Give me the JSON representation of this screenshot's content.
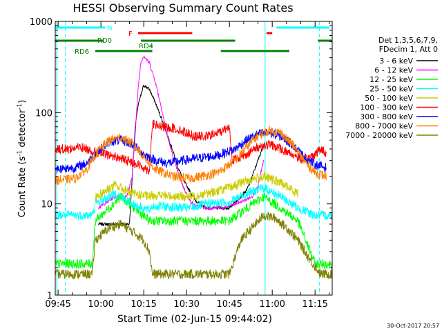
{
  "chart_data": {
    "type": "line",
    "title": "HESSI Observing Summary Count Rates",
    "xlabel": "Start Time (02-Jun-15 09:44:02)",
    "ylabel_main": "Count Rate (s",
    "ylabel_sup1": "-1",
    "ylabel_mid": " detector",
    "ylabel_sup2": "-1",
    "ylabel_end": ")",
    "y_scale": "log",
    "ylim": [
      1,
      1000
    ],
    "xlim_minutes": [
      -1,
      96
    ],
    "x_ticks": [
      {
        "label": "09:45",
        "m": 0
      },
      {
        "label": "10:00",
        "m": 15
      },
      {
        "label": "10:15",
        "m": 30
      },
      {
        "label": "10:30",
        "m": 45
      },
      {
        "label": "10:45",
        "m": 60
      },
      {
        "label": "11:00",
        "m": 75
      },
      {
        "label": "11:15",
        "m": 90
      }
    ],
    "y_ticks": [
      {
        "label": "1",
        "v": 1
      },
      {
        "label": "10",
        "v": 10
      },
      {
        "label": "100",
        "v": 100
      },
      {
        "label": "1000",
        "v": 1000
      }
    ],
    "legend_title_1": "Det 1,3,5,6,7,9,",
    "legend_title_2": "FDecim 1, Att 0",
    "legend_placement": "right",
    "timestamp": "30-Oct-2017 20:57",
    "saa_lines_minutes": [
      -0.5,
      72.5
    ],
    "night_lines_minutes": [
      2.5,
      91.5
    ],
    "flags": [
      {
        "label": "N",
        "color": "#00ffff",
        "segments": [
          [
            -1,
            16.5
          ],
          [
            76.5,
            95
          ]
        ]
      },
      {
        "label": "F",
        "color": "#ff0000",
        "segments": [
          [
            28,
            47
          ],
          [
            73,
            75
          ]
        ]
      },
      {
        "label": "RD0",
        "color": "#008000",
        "segments": [
          [
            -1,
            16
          ],
          [
            29,
            62
          ],
          [
            91,
            96
          ]
        ]
      },
      {
        "label": "RD4",
        "color": "#008000",
        "segments": [
          [
            32.5,
            33
          ]
        ]
      },
      {
        "label": "RD6",
        "color": "#008000",
        "segments": [
          [
            13,
            33
          ],
          [
            57,
            81
          ]
        ]
      }
    ],
    "series": [
      {
        "name": "3 - 6 keV",
        "color": "#000000",
        "x": [
          -1,
          12,
          14,
          25,
          26,
          27,
          28,
          30,
          32,
          34,
          36,
          38,
          40,
          42,
          44,
          46,
          48,
          52,
          60,
          66,
          68,
          70,
          72
        ],
        "y": [
          null,
          null,
          6,
          6,
          20,
          70,
          120,
          200,
          180,
          130,
          90,
          60,
          40,
          25,
          18,
          14,
          11,
          9,
          9,
          14,
          20,
          30,
          45
        ]
      },
      {
        "name": "6 - 12 keV",
        "color": "#ff00ff",
        "x": [
          -1,
          12,
          14,
          20,
          24,
          26,
          27,
          28,
          29,
          30,
          32,
          34,
          36,
          38,
          40,
          42,
          44,
          46,
          48,
          52,
          58,
          64,
          68,
          70,
          72
        ],
        "y": [
          null,
          null,
          9,
          12,
          12,
          20,
          60,
          180,
          360,
          420,
          350,
          220,
          120,
          60,
          35,
          22,
          15,
          11,
          9.5,
          9,
          9,
          10.5,
          12,
          16,
          30
        ]
      },
      {
        "name": "12 - 25 keV",
        "color": "#00ff00",
        "x": [
          -1,
          12,
          13,
          22,
          32,
          33,
          50,
          60,
          66,
          72,
          78,
          84,
          90,
          96
        ],
        "y": [
          2.2,
          2.2,
          6.5,
          12,
          6.5,
          6.5,
          6.5,
          6.5,
          9,
          12,
          9,
          6.5,
          2.2,
          2.2
        ]
      },
      {
        "name": "25 - 50 keV",
        "color": "#00ffff",
        "x": [
          -1,
          12,
          13,
          20,
          26,
          32,
          33,
          46,
          52,
          60,
          66,
          72,
          78,
          84,
          90,
          96
        ],
        "y": [
          7.5,
          7.5,
          10,
          13,
          10,
          8.5,
          9.5,
          9,
          10,
          10.5,
          13,
          15,
          12,
          9,
          7.5,
          7.5
        ]
      },
      {
        "name": "50 - 100 keV",
        "color": "#cccc00",
        "x": [
          -1,
          12,
          13,
          20,
          26,
          32,
          33,
          46,
          52,
          60,
          66,
          72,
          78,
          84,
          90,
          96
        ],
        "y": [
          null,
          null,
          12,
          16,
          13,
          12,
          12.5,
          12,
          13,
          15,
          18,
          20,
          17,
          13,
          null,
          null
        ]
      },
      {
        "name": "100 - 300 keV",
        "color": "#ff0000",
        "x": [
          -1,
          4,
          8,
          12,
          16,
          20,
          24,
          28,
          30,
          32,
          33,
          36,
          40,
          44,
          48,
          52,
          56,
          60,
          61,
          66,
          70,
          74,
          78,
          82,
          86,
          90,
          92,
          94
        ],
        "y": [
          40,
          40,
          42,
          38,
          35,
          33,
          30,
          27,
          25,
          23,
          75,
          70,
          68,
          62,
          55,
          55,
          60,
          70,
          30,
          35,
          42,
          45,
          40,
          35,
          30,
          35,
          40,
          36
        ]
      },
      {
        "name": "300 - 800 keV",
        "color": "#0000ff",
        "x": [
          -1,
          6,
          10,
          14,
          18,
          22,
          26,
          30,
          34,
          38,
          44,
          50,
          56,
          62,
          66,
          70,
          74,
          78,
          82,
          86,
          90,
          94
        ],
        "y": [
          24,
          25,
          28,
          38,
          48,
          50,
          45,
          35,
          30,
          28,
          30,
          32,
          34,
          40,
          50,
          58,
          60,
          55,
          45,
          33,
          27,
          25
        ]
      },
      {
        "name": "800 - 7000 keV",
        "color": "#ff8000",
        "x": [
          -1,
          6,
          10,
          14,
          18,
          22,
          26,
          30,
          34,
          40,
          46,
          50,
          56,
          62,
          66,
          70,
          74,
          78,
          82,
          86,
          90,
          94
        ],
        "y": [
          18,
          19,
          24,
          38,
          50,
          54,
          46,
          33,
          24,
          20,
          19,
          20,
          22,
          30,
          42,
          56,
          64,
          60,
          45,
          30,
          22,
          20
        ]
      },
      {
        "name": "7000 - 20000 keV",
        "color": "#808000",
        "x": [
          -1,
          12,
          13,
          18,
          22,
          26,
          30,
          32,
          33,
          50,
          60,
          64,
          68,
          72,
          76,
          80,
          84,
          88,
          92,
          96
        ],
        "y": [
          1.7,
          1.7,
          4,
          5.5,
          6,
          5,
          4,
          3,
          1.7,
          1.7,
          1.7,
          4,
          5.5,
          7.5,
          7,
          5.5,
          4,
          2.5,
          1.7,
          1.7
        ]
      }
    ]
  }
}
